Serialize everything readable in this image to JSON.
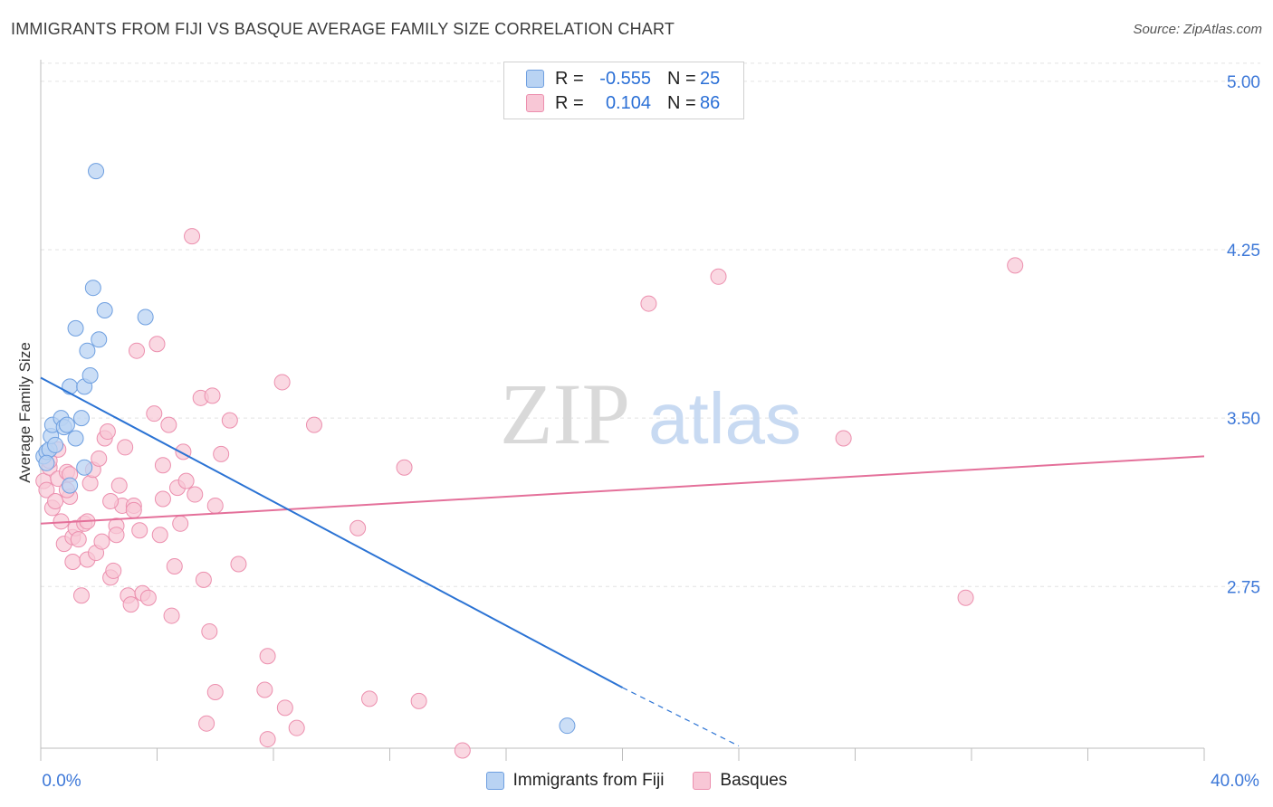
{
  "title": "IMMIGRANTS FROM FIJI VS BASQUE AVERAGE FAMILY SIZE CORRELATION CHART",
  "source": "Source: ZipAtlas.com",
  "legend": {
    "rows": [
      {
        "r_label": "R =",
        "r_value": "-0.555",
        "n_label": "N =",
        "n_value": "25"
      },
      {
        "r_label": "R =",
        "r_value": "0.104",
        "n_label": "N =",
        "n_value": "86"
      }
    ]
  },
  "bottom_legend": [
    "Immigrants from Fiji",
    "Basques"
  ],
  "watermark": {
    "zip": "ZIP",
    "atlas": "atlas"
  },
  "colors": {
    "fiji_fill": "#b9d3f3",
    "fiji_stroke": "#6e9fe0",
    "fiji_line": "#2b73d4",
    "basque_fill": "#f8c7d6",
    "basque_stroke": "#ec8fae",
    "basque_line": "#e4709a",
    "tick_label": "#3d78d8",
    "grid": "#e3e3e3"
  },
  "chart_data": {
    "type": "scatter",
    "title": "IMMIGRANTS FROM FIJI VS BASQUE AVERAGE FAMILY SIZE CORRELATION CHART",
    "xlabel": "",
    "ylabel": "Average Family Size",
    "xlim": [
      0,
      40
    ],
    "ylim": [
      2.03,
      5.08
    ],
    "x_tick_labels": [
      "0.0%",
      "40.0%"
    ],
    "y_ticks": [
      2.75,
      3.5,
      4.25,
      5.0
    ],
    "y_tick_labels": [
      "2.75",
      "3.50",
      "4.25",
      "5.00"
    ],
    "grid": true,
    "series": [
      {
        "name": "Immigrants from Fiji",
        "points": [
          [
            0.1,
            3.33
          ],
          [
            0.2,
            3.35
          ],
          [
            0.3,
            3.36
          ],
          [
            0.35,
            3.42
          ],
          [
            0.4,
            3.47
          ],
          [
            0.5,
            3.38
          ],
          [
            0.7,
            3.5
          ],
          [
            0.8,
            3.46
          ],
          [
            0.9,
            3.47
          ],
          [
            1.0,
            3.64
          ],
          [
            1.0,
            3.2
          ],
          [
            1.2,
            3.41
          ],
          [
            1.2,
            3.9
          ],
          [
            1.4,
            3.5
          ],
          [
            1.5,
            3.64
          ],
          [
            1.5,
            3.28
          ],
          [
            1.6,
            3.8
          ],
          [
            1.7,
            3.69
          ],
          [
            1.8,
            4.08
          ],
          [
            1.9,
            4.6
          ],
          [
            2.0,
            3.85
          ],
          [
            2.2,
            3.98
          ],
          [
            3.6,
            3.95
          ],
          [
            0.2,
            3.3
          ],
          [
            18.1,
            2.13
          ]
        ],
        "trend": {
          "x": [
            0,
            20
          ],
          "y": [
            3.68,
            2.3
          ],
          "dashed_to": [
            24,
            2.04
          ]
        }
      },
      {
        "name": "Basques",
        "points": [
          [
            0.1,
            3.22
          ],
          [
            0.2,
            3.18
          ],
          [
            0.3,
            3.28
          ],
          [
            0.4,
            3.1
          ],
          [
            0.5,
            3.13
          ],
          [
            0.6,
            3.23
          ],
          [
            0.7,
            3.04
          ],
          [
            0.8,
            2.94
          ],
          [
            0.9,
            3.26
          ],
          [
            1.0,
            3.15
          ],
          [
            1.1,
            2.97
          ],
          [
            1.1,
            2.86
          ],
          [
            1.2,
            3.01
          ],
          [
            1.3,
            2.96
          ],
          [
            1.4,
            2.71
          ],
          [
            1.5,
            3.03
          ],
          [
            1.6,
            2.87
          ],
          [
            1.7,
            3.21
          ],
          [
            1.8,
            3.27
          ],
          [
            1.9,
            2.9
          ],
          [
            2.0,
            3.32
          ],
          [
            2.1,
            2.95
          ],
          [
            2.2,
            3.41
          ],
          [
            2.3,
            3.44
          ],
          [
            2.4,
            2.79
          ],
          [
            2.5,
            2.82
          ],
          [
            2.6,
            3.02
          ],
          [
            2.7,
            3.2
          ],
          [
            2.8,
            3.11
          ],
          [
            2.9,
            3.37
          ],
          [
            3.0,
            2.71
          ],
          [
            3.1,
            2.67
          ],
          [
            3.2,
            3.11
          ],
          [
            3.3,
            3.8
          ],
          [
            3.5,
            2.72
          ],
          [
            3.7,
            2.7
          ],
          [
            3.9,
            3.52
          ],
          [
            4.0,
            3.83
          ],
          [
            4.1,
            2.98
          ],
          [
            4.2,
            3.14
          ],
          [
            4.4,
            3.47
          ],
          [
            4.5,
            2.62
          ],
          [
            4.6,
            2.84
          ],
          [
            4.7,
            3.19
          ],
          [
            4.8,
            3.03
          ],
          [
            4.9,
            3.35
          ],
          [
            5.0,
            3.22
          ],
          [
            5.2,
            4.31
          ],
          [
            5.3,
            3.16
          ],
          [
            5.5,
            3.59
          ],
          [
            5.6,
            2.78
          ],
          [
            5.7,
            2.14
          ],
          [
            5.8,
            2.55
          ],
          [
            5.9,
            3.6
          ],
          [
            6.0,
            3.11
          ],
          [
            6.0,
            2.28
          ],
          [
            6.2,
            3.34
          ],
          [
            6.5,
            3.49
          ],
          [
            6.8,
            2.85
          ],
          [
            7.7,
            2.29
          ],
          [
            7.8,
            2.07
          ],
          [
            7.8,
            2.44
          ],
          [
            8.3,
            3.66
          ],
          [
            8.4,
            2.21
          ],
          [
            8.8,
            2.12
          ],
          [
            9.4,
            3.47
          ],
          [
            10.9,
            3.01
          ],
          [
            11.3,
            2.25
          ],
          [
            12.5,
            3.28
          ],
          [
            13.0,
            2.24
          ],
          [
            14.5,
            2.02
          ],
          [
            20.9,
            4.01
          ],
          [
            23.3,
            4.13
          ],
          [
            27.6,
            3.41
          ],
          [
            31.8,
            2.7
          ],
          [
            33.5,
            4.18
          ],
          [
            0.3,
            3.31
          ],
          [
            0.6,
            3.36
          ],
          [
            1.0,
            3.25
          ],
          [
            2.4,
            3.13
          ],
          [
            3.2,
            3.09
          ],
          [
            1.6,
            3.04
          ],
          [
            0.9,
            3.18
          ],
          [
            2.6,
            2.98
          ],
          [
            4.2,
            3.29
          ],
          [
            3.4,
            3.0
          ]
        ],
        "trend": {
          "x": [
            0,
            40
          ],
          "y": [
            3.03,
            3.33
          ]
        }
      }
    ]
  }
}
